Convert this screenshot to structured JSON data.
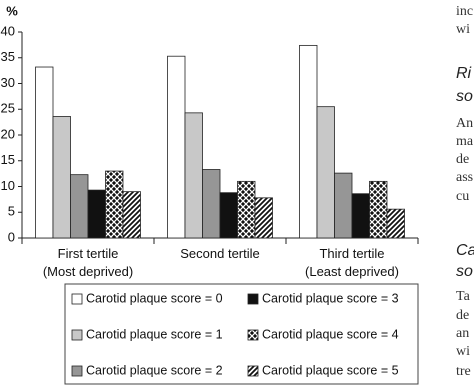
{
  "chart_data": {
    "type": "bar",
    "y_label": "%",
    "categories": [
      "First tertile\n(Most deprived)",
      "Second tertile",
      "Third tertile\n(Least deprived)"
    ],
    "series": [
      {
        "name": "Carotid plaque score = 0",
        "color": "#ffffff",
        "values": [
          33.2,
          35.3,
          37.4
        ]
      },
      {
        "name": "Carotid plaque score = 1",
        "color": "#c8c8c8",
        "values": [
          23.6,
          24.3,
          25.5
        ]
      },
      {
        "name": "Carotid plaque score = 2",
        "color": "#969696",
        "values": [
          12.3,
          13.3,
          12.6
        ]
      },
      {
        "name": "Carotid plaque score = 3",
        "color": "#111111",
        "values": [
          9.3,
          8.8,
          8.6
        ]
      },
      {
        "name": "Carotid plaque score = 4",
        "color": "#111111",
        "pattern": "checker",
        "values": [
          13.0,
          11.0,
          11.0
        ]
      },
      {
        "name": "Carotid plaque score = 5",
        "color": "#111111",
        "pattern": "diagonal",
        "values": [
          9.0,
          7.8,
          5.6
        ]
      }
    ],
    "ylim": [
      0,
      40
    ],
    "yticks": [
      0,
      5,
      10,
      15,
      20,
      25,
      30,
      35,
      40
    ],
    "grid": false
  },
  "side_text": [
    {
      "text": "inc",
      "style": "body"
    },
    {
      "text": "wi",
      "style": "body"
    },
    {
      "text": "Ri",
      "style": "head"
    },
    {
      "text": "so",
      "style": "head"
    },
    {
      "text": "An",
      "style": "body"
    },
    {
      "text": "ma",
      "style": "body"
    },
    {
      "text": "de",
      "style": "body"
    },
    {
      "text": "ass",
      "style": "body"
    },
    {
      "text": "cu",
      "style": "body"
    },
    {
      "text": "Ca",
      "style": "head"
    },
    {
      "text": "so",
      "style": "head"
    },
    {
      "text": "Ta",
      "style": "body"
    },
    {
      "text": "de",
      "style": "body"
    },
    {
      "text": "an",
      "style": "body"
    },
    {
      "text": "wi",
      "style": "body"
    },
    {
      "text": "tre",
      "style": "body"
    }
  ]
}
